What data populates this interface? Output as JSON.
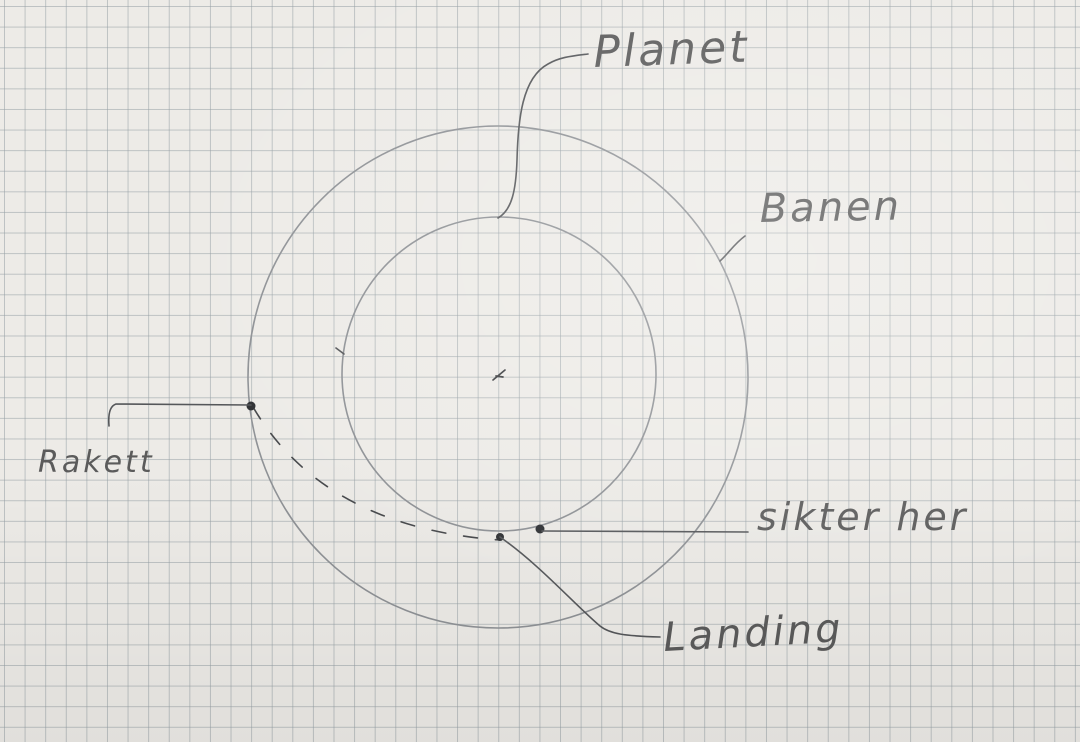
{
  "labels": {
    "planet": "Planet",
    "banen": "Banen",
    "rakett": "Rakett",
    "sikter_her": "sikter her",
    "landing": "Landing"
  }
}
